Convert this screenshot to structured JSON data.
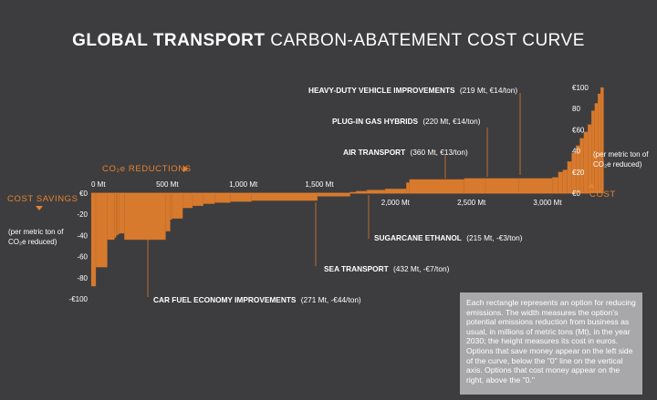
{
  "title_bold": "GLOBAL TRANSPORT",
  "title_rest": "CARBON-ABATEMENT COST CURVE",
  "colors": {
    "background": "#3d3d3f",
    "bar": "#d77a2e",
    "accent": "#e6822e",
    "text": "#ffffff",
    "note_bg": "#a8a8aa"
  },
  "labels": {
    "co2_reductions": "CO₂e REDUCTIONS",
    "cost_savings": "COST SAVINGS",
    "cost": "COST",
    "left_unit_1": "(per metric ton of",
    "left_unit_2": "CO₂e reduced)",
    "right_unit_1": "(per metric ton of",
    "right_unit_2": "CO₂e reduced)"
  },
  "annotations": [
    {
      "name": "HEAVY-DUTY VEHICLE IMPROVEMENTS",
      "detail": "(219 Mt, €14/ton)"
    },
    {
      "name": "PLUG-IN GAS HYBRIDS",
      "detail": "(220 Mt, €14/ton)"
    },
    {
      "name": "AIR TRANSPORT",
      "detail": "(360 Mt, €13/ton)"
    },
    {
      "name": "SUGARCANE ETHANOL",
      "detail": "(215 Mt, -€3/ton)"
    },
    {
      "name": "SEA TRANSPORT",
      "detail": "(432 Mt, -€7/ton)"
    },
    {
      "name": "CAR FUEL ECONOMY IMPROVEMENTS",
      "detail": "(271 Mt, -€44/ton)"
    }
  ],
  "note": "Each rectangle represents an option for reducing emissions. The width measures the option's potential emissions reduction from business as usual, in millions of metric tons (Mt), in the year 2030; the height measures its cost in euros. Options that save money appear on the left side of the curve, below the \"0\" line on the vertical axis. Options that cost money appear on the right, above the \"0.\"",
  "chart_data": {
    "type": "bar",
    "title": "GLOBAL TRANSPORT CARBON-ABATEMENT COST CURVE",
    "xlabel": "CO₂e REDUCTIONS",
    "ylabel": "COST SAVINGS / COST (per metric ton of CO₂e reduced)",
    "x_ticks": [
      "0 Mt",
      "500 Mt",
      "1,000 Mt",
      "1,500 Mt",
      "2,000 Mt",
      "2,500 Mt",
      "3,000 Mt"
    ],
    "x_tick_values": [
      0,
      500,
      1000,
      1500,
      2000,
      2500,
      3000
    ],
    "left_y_ticks": [
      "€0",
      "-20",
      "-40",
      "-60",
      "-80",
      "-€100"
    ],
    "left_y_tick_values": [
      0,
      -20,
      -40,
      -60,
      -80,
      -100
    ],
    "right_y_ticks": [
      "€100",
      "80",
      "€60",
      "40",
      "€20",
      "€0"
    ],
    "right_y_tick_values": [
      100,
      80,
      60,
      40,
      20,
      0
    ],
    "xlim": [
      0,
      3275
    ],
    "ylim": [
      -100,
      100
    ],
    "segments": [
      {
        "width": 30,
        "value": -88
      },
      {
        "width": 75,
        "value": -70
      },
      {
        "width": 48,
        "value": -44
      },
      {
        "width": 10,
        "value": -42
      },
      {
        "width": 10,
        "value": -40
      },
      {
        "width": 10,
        "value": -39
      },
      {
        "width": 35,
        "value": -38
      },
      {
        "width": 271,
        "value": -44
      },
      {
        "width": 30,
        "value": -36
      },
      {
        "width": 12,
        "value": -25
      },
      {
        "width": 70,
        "value": -24
      },
      {
        "width": 65,
        "value": -14
      },
      {
        "width": 70,
        "value": -12
      },
      {
        "width": 75,
        "value": -10
      },
      {
        "width": 104,
        "value": -9
      },
      {
        "width": 140,
        "value": -8
      },
      {
        "width": 432,
        "value": -7
      },
      {
        "width": 215,
        "value": -3
      },
      {
        "width": 40,
        "value": 1
      },
      {
        "width": 70,
        "value": 2
      },
      {
        "width": 120,
        "value": 3
      },
      {
        "width": 140,
        "value": 4
      },
      {
        "width": 20,
        "value": 10
      },
      {
        "width": 360,
        "value": 13
      },
      {
        "width": 140,
        "value": 14
      },
      {
        "width": 220,
        "value": 14
      },
      {
        "width": 219,
        "value": 14
      },
      {
        "width": 40,
        "value": 15
      },
      {
        "width": 30,
        "value": 20
      },
      {
        "width": 30,
        "value": 22
      },
      {
        "width": 28,
        "value": 30
      },
      {
        "width": 28,
        "value": 38
      },
      {
        "width": 26,
        "value": 45
      },
      {
        "width": 26,
        "value": 52
      },
      {
        "width": 26,
        "value": 58
      },
      {
        "width": 24,
        "value": 65
      },
      {
        "width": 22,
        "value": 78
      },
      {
        "width": 20,
        "value": 85
      },
      {
        "width": 18,
        "value": 94
      },
      {
        "width": 20,
        "value": 100
      }
    ],
    "grid": false
  }
}
